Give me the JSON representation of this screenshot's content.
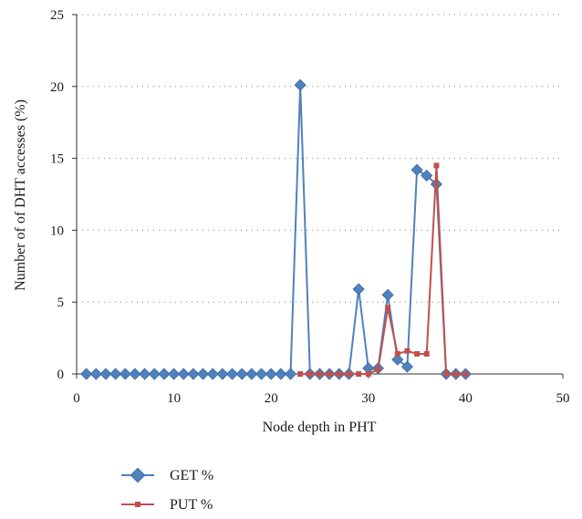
{
  "chart_data": {
    "type": "line",
    "title": "",
    "xlabel": "Node depth in PHT",
    "ylabel": "Number of  of DHT accesses (%)",
    "xlim": [
      0,
      50
    ],
    "ylim": [
      0,
      25
    ],
    "xticks": [
      0,
      10,
      20,
      30,
      40,
      50
    ],
    "yticks": [
      0,
      5,
      10,
      15,
      20,
      25
    ],
    "grid": "horizontal dotted",
    "legend_position": "bottom-left",
    "x": [
      1,
      2,
      3,
      4,
      5,
      6,
      7,
      8,
      9,
      10,
      11,
      12,
      13,
      14,
      15,
      16,
      17,
      18,
      19,
      20,
      21,
      22,
      23,
      24,
      25,
      26,
      27,
      28,
      29,
      30,
      31,
      32,
      33,
      34,
      35,
      36,
      37,
      38,
      39,
      40
    ],
    "series": [
      {
        "name": "GET %",
        "color": "#4F81BD",
        "marker": "diamond",
        "values": [
          0,
          0,
          0,
          0,
          0,
          0,
          0,
          0,
          0,
          0,
          0,
          0,
          0,
          0,
          0,
          0,
          0,
          0,
          0,
          0,
          0,
          0,
          20.1,
          0,
          0,
          0,
          0,
          0,
          5.9,
          0.4,
          0.4,
          5.5,
          1.0,
          0.5,
          14.2,
          13.8,
          13.2,
          0,
          0,
          0
        ]
      },
      {
        "name": "PUT %",
        "color": "#C0504D",
        "marker": "square",
        "values": [
          null,
          null,
          null,
          null,
          null,
          null,
          null,
          null,
          null,
          null,
          null,
          null,
          null,
          null,
          null,
          null,
          null,
          null,
          null,
          null,
          null,
          null,
          0,
          0,
          0,
          0,
          0,
          0,
          0,
          0,
          0.3,
          4.6,
          1.4,
          1.6,
          1.4,
          1.4,
          14.5,
          0,
          0,
          0
        ]
      }
    ]
  }
}
